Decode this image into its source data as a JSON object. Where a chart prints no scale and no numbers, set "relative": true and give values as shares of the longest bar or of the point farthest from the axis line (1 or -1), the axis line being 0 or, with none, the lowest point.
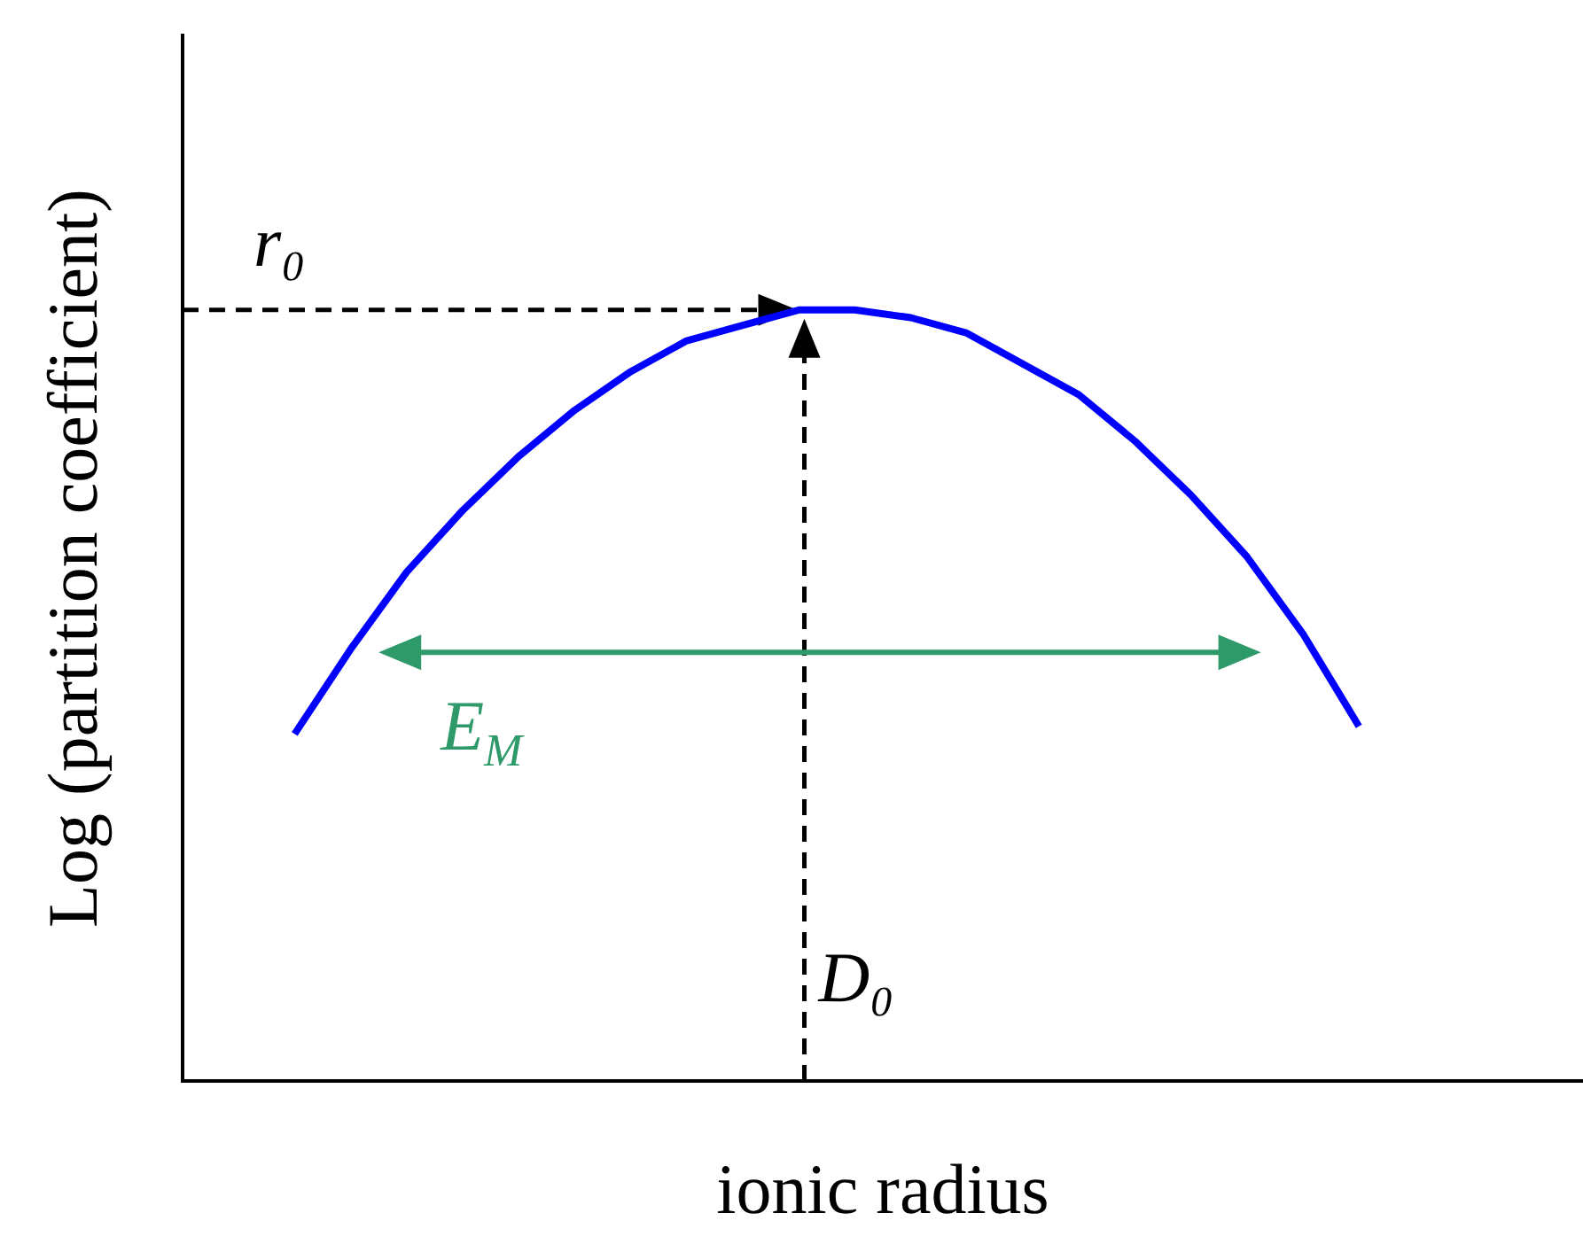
{
  "chart_data": {
    "type": "line",
    "xlabel": "ionic radius",
    "ylabel": "Log (partition coefficient)",
    "relative": true,
    "categories": [
      null,
      null,
      null,
      null,
      null,
      null,
      null,
      null,
      null,
      null,
      null,
      null,
      null,
      null,
      null,
      null,
      null,
      null,
      null,
      null,
      null,
      null,
      null,
      null,
      null,
      null
    ],
    "series": [
      {
        "color": "#0000ff",
        "values": [
          null,
          null,
          0.45,
          0.56,
          0.66,
          0.74,
          0.81,
          0.87,
          0.92,
          0.96,
          0.98,
          1,
          1,
          0.99,
          0.97,
          0.93,
          0.89,
          0.83,
          0.76,
          0.68,
          0.58,
          0.46,
          null,
          null,
          null,
          null
        ]
      }
    ],
    "annotations": [
      "r₀",
      "E$_{M}$",
      "D₀"
    ],
    "grid": false,
    "legend": false,
    "marker": "none",
    "line_style": "solid"
  }
}
